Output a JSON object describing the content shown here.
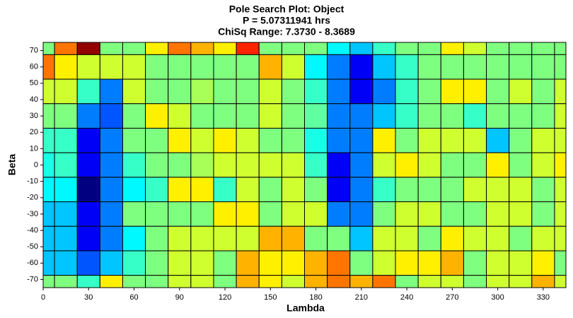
{
  "chart_data": {
    "type": "heatmap",
    "title": "Pole Search Plot: Object",
    "subtitle": [
      "P = 5.07311941 hrs",
      "ChiSq Range: 7.3730 - 8.3689"
    ],
    "x_label": "Lambda",
    "y_label": "Beta",
    "x": [
      0,
      15,
      30,
      45,
      60,
      75,
      90,
      105,
      120,
      135,
      150,
      165,
      180,
      195,
      210,
      225,
      240,
      255,
      270,
      285,
      300,
      315,
      330,
      345
    ],
    "y": [
      75,
      60,
      45,
      30,
      15,
      0,
      -15,
      -30,
      -45,
      -60,
      -75
    ],
    "values": [
      [
        7.87,
        8.13,
        8.35,
        7.87,
        7.87,
        8.01,
        8.13,
        8.07,
        8.01,
        8.21,
        7.87,
        7.87,
        7.87,
        7.74,
        7.69,
        7.8,
        7.87,
        7.87,
        8.01,
        7.95,
        7.87,
        7.87,
        7.87,
        7.87
      ],
      [
        8.13,
        8.01,
        7.95,
        7.95,
        7.95,
        7.87,
        7.87,
        7.87,
        7.87,
        7.87,
        8.07,
        7.95,
        7.74,
        7.62,
        7.49,
        7.69,
        7.8,
        7.87,
        7.87,
        7.87,
        7.87,
        7.87,
        7.87,
        7.87
      ],
      [
        7.95,
        7.95,
        7.8,
        7.62,
        7.95,
        7.87,
        7.87,
        7.91,
        7.87,
        7.87,
        7.95,
        7.87,
        7.8,
        7.62,
        7.49,
        7.62,
        7.8,
        7.87,
        8.01,
        8.01,
        7.87,
        7.95,
        7.87,
        7.95
      ],
      [
        7.87,
        7.87,
        7.62,
        7.58,
        7.87,
        8.01,
        7.95,
        7.87,
        7.87,
        7.87,
        7.95,
        7.87,
        7.84,
        7.62,
        7.62,
        7.69,
        7.8,
        7.87,
        7.87,
        7.8,
        7.87,
        7.87,
        7.87,
        7.95
      ],
      [
        7.8,
        7.8,
        7.49,
        7.62,
        7.87,
        7.87,
        8.01,
        7.95,
        8.01,
        7.95,
        7.87,
        7.87,
        7.77,
        7.62,
        7.62,
        8.01,
        7.87,
        7.95,
        7.95,
        7.95,
        7.69,
        7.87,
        7.95,
        7.95
      ],
      [
        7.77,
        7.8,
        7.49,
        7.62,
        7.8,
        7.87,
        7.87,
        7.91,
        7.95,
        7.95,
        7.95,
        7.95,
        7.8,
        7.49,
        7.62,
        7.95,
        8.01,
        7.95,
        7.87,
        7.87,
        8.01,
        7.87,
        7.95,
        8.01
      ],
      [
        7.74,
        7.74,
        7.373,
        7.62,
        7.74,
        7.8,
        8.01,
        8.01,
        7.8,
        7.95,
        7.87,
        7.95,
        7.87,
        7.49,
        7.62,
        7.8,
        7.87,
        7.87,
        7.87,
        7.95,
        7.95,
        7.95,
        7.87,
        7.95
      ],
      [
        7.69,
        7.69,
        7.49,
        7.62,
        7.87,
        7.87,
        7.87,
        7.87,
        8.01,
        8.01,
        7.87,
        7.95,
        7.95,
        7.62,
        7.62,
        7.87,
        7.95,
        7.95,
        7.87,
        7.87,
        7.95,
        7.95,
        7.87,
        7.95
      ],
      [
        7.69,
        7.69,
        7.49,
        7.62,
        7.74,
        7.87,
        7.95,
        7.95,
        7.95,
        7.95,
        8.07,
        8.07,
        7.87,
        7.87,
        7.69,
        7.95,
        7.95,
        7.87,
        8.01,
        7.95,
        7.95,
        7.87,
        7.95,
        7.95
      ],
      [
        7.69,
        7.69,
        7.58,
        7.69,
        7.8,
        7.87,
        7.95,
        7.95,
        7.87,
        8.07,
        8.01,
        8.01,
        8.07,
        8.13,
        7.87,
        7.95,
        8.01,
        8.01,
        8.07,
        7.87,
        7.95,
        7.95,
        8.01,
        7.87
      ],
      [
        7.87,
        7.87,
        7.8,
        8.01,
        7.87,
        7.87,
        7.95,
        7.95,
        7.87,
        8.07,
        8.01,
        7.95,
        8.07,
        8.13,
        8.07,
        8.13,
        7.87,
        7.95,
        7.95,
        7.87,
        7.95,
        7.95,
        8.07,
        7.95
      ]
    ],
    "zlim": [
      7.373,
      8.3689
    ],
    "colormap": "jet",
    "xlim": [
      0,
      345
    ],
    "ylim": [
      -75,
      75
    ],
    "xticks": [
      0,
      30,
      60,
      90,
      120,
      150,
      180,
      210,
      240,
      270,
      300,
      330
    ],
    "yticks": [
      70,
      60,
      50,
      40,
      30,
      20,
      10,
      0,
      -10,
      -20,
      -30,
      -40,
      -50,
      -60,
      -70
    ]
  }
}
